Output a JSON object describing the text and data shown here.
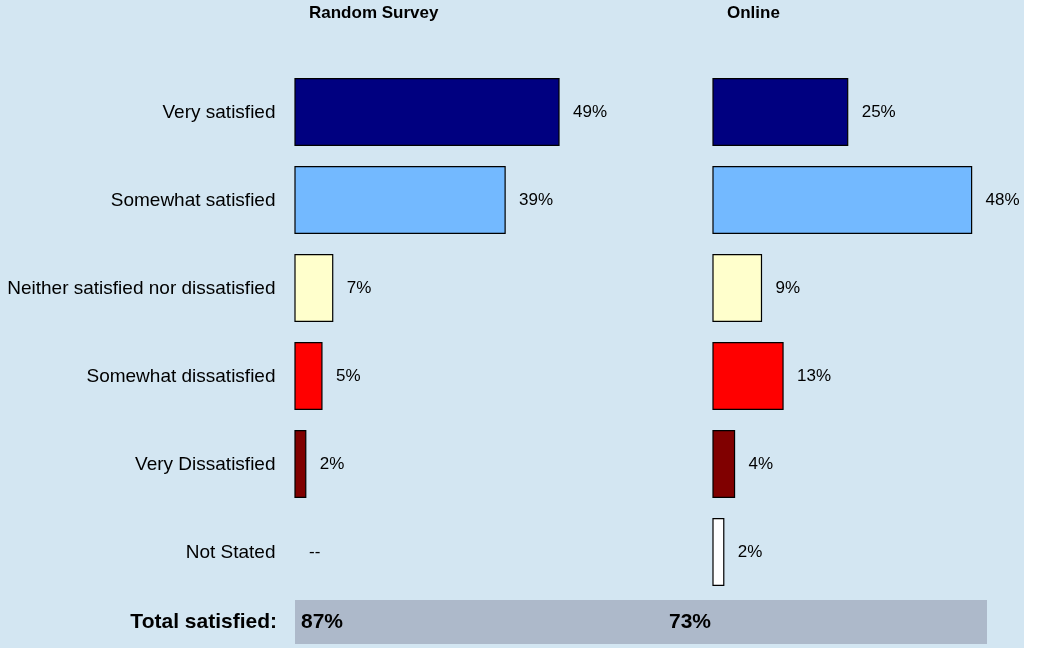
{
  "chart_data": [
    {
      "type": "bar",
      "orientation": "horizontal",
      "title": "Random Survey",
      "categories": [
        "Very satisfied",
        "Somewhat satisfied",
        "Neither satisfied nor dissatisfied",
        "Somewhat dissatisfied",
        "Very Dissatisfied",
        "Not Stated"
      ],
      "values": [
        49,
        39,
        7,
        5,
        2,
        null
      ],
      "value_labels": [
        "49%",
        "39%",
        "7%",
        "5%",
        "2%",
        "--"
      ],
      "colors": [
        "#000080",
        "#73b9ff",
        "#ffffcc",
        "#ff0000",
        "#800000",
        "#ffffff"
      ],
      "annotations": [
        "Total satisfied:",
        "87%"
      ]
    },
    {
      "type": "bar",
      "orientation": "horizontal",
      "title": "Online",
      "categories": [
        null,
        null,
        null,
        null,
        null,
        null
      ],
      "values": [
        25,
        48,
        9,
        13,
        4,
        2
      ],
      "value_labels": [
        "25%",
        "48%",
        "9%",
        "13%",
        "4%",
        "2%"
      ],
      "colors": [
        "#000080",
        "#73b9ff",
        "#ffffcc",
        "#ff0000",
        "#800000",
        "#ffffff"
      ],
      "annotations": [
        "73%"
      ]
    }
  ]
}
